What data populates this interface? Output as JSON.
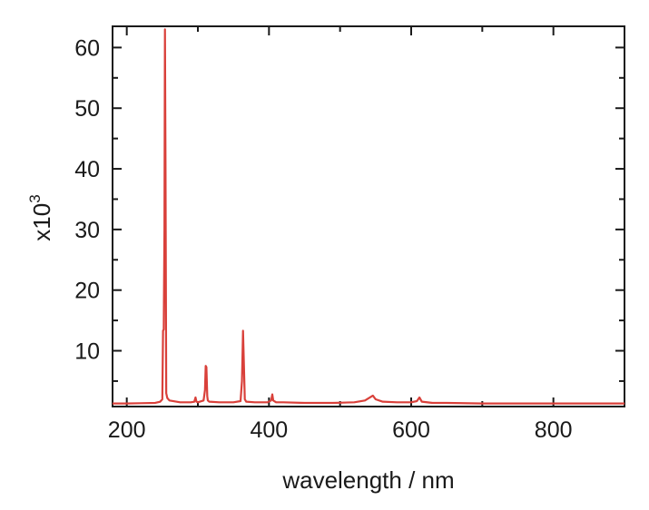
{
  "chart_data": {
    "type": "line",
    "title": "",
    "xlabel": "wavelength / nm",
    "ylabel": "x10",
    "ylabel_superscript": "3",
    "xlim": [
      180,
      900
    ],
    "ylim": [
      0.8,
      63.5
    ],
    "x_ticks": [
      200,
      400,
      600,
      800
    ],
    "x_minor_ticks": [
      300,
      500,
      700
    ],
    "y_ticks": [
      10,
      20,
      30,
      40,
      50,
      60
    ],
    "grid": false,
    "legend": "none",
    "series": [
      {
        "color": "#d9403a",
        "x": [
          180,
          200,
          220,
          240,
          247,
          250,
          251,
          252,
          253,
          253.7,
          254.5,
          255.5,
          257,
          260,
          275,
          290,
          295,
          296.7,
          298,
          300,
          308,
          310,
          311,
          312,
          313.2,
          314,
          316,
          330,
          350,
          360,
          362,
          363.5,
          365.0,
          366,
          368,
          380,
          398,
          403,
          404.7,
          406,
          410,
          420,
          450,
          490,
          520,
          535,
          542,
          546.1,
          550,
          560,
          580,
          600,
          608,
          611.6,
          615,
          630,
          650,
          700,
          750,
          800,
          850,
          900
        ],
        "y": [
          1.3,
          1.3,
          1.35,
          1.4,
          1.6,
          2.0,
          13.3,
          13.5,
          30,
          63,
          40,
          3.0,
          2.2,
          1.8,
          1.5,
          1.5,
          1.6,
          2.3,
          1.6,
          1.5,
          1.8,
          3.5,
          7.5,
          7.3,
          2.5,
          1.8,
          1.6,
          1.5,
          1.5,
          1.7,
          5.0,
          13.3,
          6.5,
          2.0,
          1.6,
          1.5,
          1.5,
          1.8,
          2.8,
          1.8,
          1.5,
          1.5,
          1.4,
          1.4,
          1.5,
          1.8,
          2.3,
          2.6,
          2.0,
          1.6,
          1.5,
          1.5,
          1.7,
          2.3,
          1.6,
          1.4,
          1.4,
          1.3,
          1.3,
          1.3,
          1.3,
          1.3
        ]
      }
    ]
  }
}
